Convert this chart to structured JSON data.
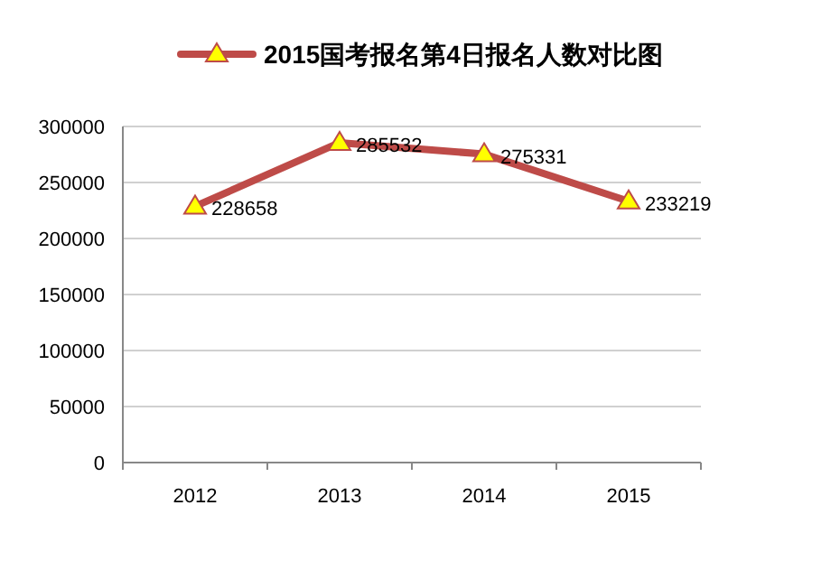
{
  "chart_data": {
    "type": "line",
    "categories": [
      "2012",
      "2013",
      "2014",
      "2015"
    ],
    "series": [
      {
        "name": "2015国考报名第4日报名人数对比图",
        "color": "#be4b48",
        "values": [
          228658,
          285532,
          275331,
          233219
        ]
      }
    ],
    "ylim": [
      0,
      300000
    ],
    "yticks": [
      0,
      50000,
      100000,
      150000,
      200000,
      250000,
      300000
    ],
    "grid": "y",
    "legend": "top",
    "marker": "triangle",
    "data_labels": true
  }
}
